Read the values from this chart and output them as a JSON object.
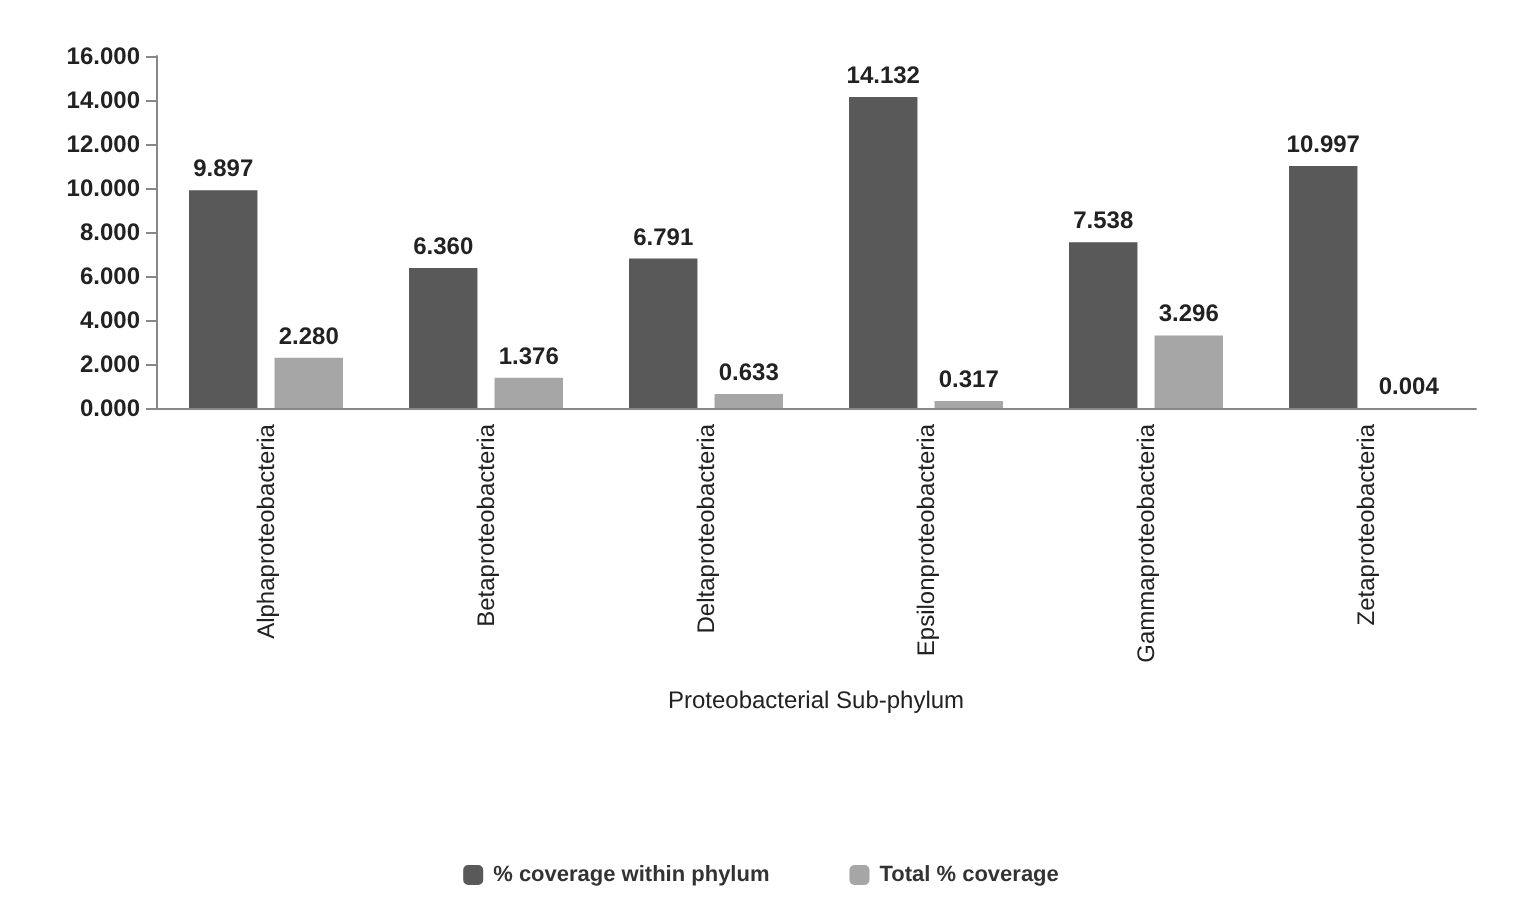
{
  "chart_data": {
    "type": "bar",
    "xlabel": "Proteobacterial Sub-phylum",
    "categories": [
      "Alphaproteobacteria",
      "Betaproteobacteria",
      "Deltaproteobacteria",
      "Epsilonproteobacteria",
      "Gammaproteobacteria",
      "Zetaproteobacteria"
    ],
    "series": [
      {
        "name": "% coverage within phylum",
        "color": "#595959",
        "values": [
          9.897,
          6.36,
          6.791,
          14.132,
          7.538,
          10.997
        ],
        "value_labels": [
          "9.897",
          "6.360",
          "6.791",
          "14.132",
          "7.538",
          "10.997"
        ]
      },
      {
        "name": "Total % coverage",
        "color": "#a6a6a6",
        "values": [
          2.28,
          1.376,
          0.633,
          0.317,
          3.296,
          0.004
        ],
        "value_labels": [
          "2.280",
          "1.376",
          "0.633",
          "0.317",
          "3.296",
          "0.004"
        ]
      }
    ],
    "ylim": [
      0,
      16
    ],
    "yticks": [
      {
        "value": 0,
        "label": "0.000"
      },
      {
        "value": 2,
        "label": "2.000"
      },
      {
        "value": 4,
        "label": "4.000"
      },
      {
        "value": 6,
        "label": "6.000"
      },
      {
        "value": 8,
        "label": "8.000"
      },
      {
        "value": 10,
        "label": "10.000"
      },
      {
        "value": 12,
        "label": "12.000"
      },
      {
        "value": 14,
        "label": "14.000"
      },
      {
        "value": 16,
        "label": "16.000"
      }
    ],
    "grid": false,
    "legend": "bottom"
  }
}
